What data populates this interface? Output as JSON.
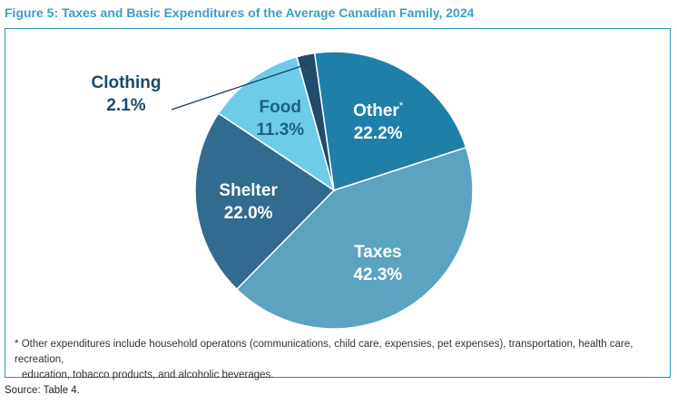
{
  "figure": {
    "title": "Figure 5: Taxes and Basic Expenditures of the Average Canadian Family, 2024",
    "footnote_marker": "*",
    "footnote_line1": "Other expenditures include household operatons (communications, child care, expensies, pet expenses), transportation, health care, recreation,",
    "footnote_line2": "education, tobacco products, and alcoholic beverages.",
    "source": "Source: Table 4."
  },
  "chart_data": {
    "type": "pie",
    "title": "Figure 5: Taxes and Basic Expenditures of the Average Canadian Family, 2024",
    "slices": [
      {
        "label": "Taxes",
        "value": 42.3,
        "display": "42.3%",
        "color": "#5ba3c0",
        "text_color": "#ffffff",
        "marker": ""
      },
      {
        "label": "Shelter",
        "value": 22.0,
        "display": "22.0%",
        "color": "#316b8f",
        "text_color": "#ffffff",
        "marker": ""
      },
      {
        "label": "Food",
        "value": 11.3,
        "display": "11.3%",
        "color": "#6dcde8",
        "text_color": "#1d5f85",
        "marker": ""
      },
      {
        "label": "Clothing",
        "value": 2.1,
        "display": "2.1%",
        "color": "#214c6b",
        "text_color": "#1d4a6b",
        "marker": ""
      },
      {
        "label": "Other",
        "value": 22.2,
        "display": "22.2%",
        "color": "#1f7fa8",
        "text_color": "#ffffff",
        "marker": "*"
      }
    ]
  }
}
